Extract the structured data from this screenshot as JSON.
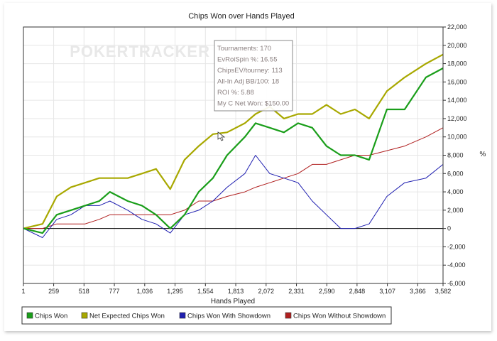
{
  "chart_data": {
    "type": "line",
    "title": "Chips Won over Hands Played",
    "xlabel": "Hands Played",
    "ylabel": "%",
    "xlim": [
      1,
      3582
    ],
    "ylim": [
      -6000,
      22000
    ],
    "grid": true,
    "x_ticks": [
      1,
      259,
      518,
      777,
      1036,
      1295,
      1554,
      1813,
      2072,
      2331,
      2590,
      2848,
      3107,
      3366,
      3582
    ],
    "x_tick_labels": [
      "1",
      "259",
      "518",
      "777",
      "1,036",
      "1,295",
      "1,554",
      "1,813",
      "2,072",
      "2,331",
      "2,590",
      "2,848",
      "3,107",
      "3,366",
      "3,582"
    ],
    "y_ticks": [
      -6000,
      -4000,
      -2000,
      0,
      2000,
      4000,
      6000,
      8000,
      10000,
      12000,
      14000,
      16000,
      18000,
      20000,
      22000
    ],
    "y_tick_labels": [
      "-6,000",
      "-4,000",
      "-2,000",
      "0",
      "2,000",
      "4,000",
      "6,000",
      "8,000",
      "10,000",
      "12,000",
      "14,000",
      "16,000",
      "18,000",
      "20,000",
      "22,000"
    ],
    "legend_position": "bottom",
    "x": [
      1,
      164,
      285,
      406,
      527,
      648,
      739,
      891,
      1012,
      1133,
      1254,
      1376,
      1497,
      1618,
      1739,
      1891,
      1982,
      2103,
      2224,
      2345,
      2466,
      2587,
      2709,
      2830,
      2951,
      3103,
      3254,
      3436,
      3582
    ],
    "series": [
      {
        "name": "Chips Won",
        "color": "#1a9e1a",
        "values": [
          0,
          -500,
          1500,
          2000,
          2500,
          3000,
          4000,
          3000,
          2500,
          1500,
          0,
          1500,
          4000,
          5500,
          8000,
          10000,
          11500,
          11000,
          10500,
          11500,
          11000,
          9000,
          8000,
          8000,
          7500,
          13000,
          13000,
          16500,
          17500
        ]
      },
      {
        "name": "Net Expected Chips Won",
        "color": "#a8a800",
        "values": [
          0,
          500,
          3500,
          4500,
          5000,
          5500,
          5500,
          5500,
          6000,
          6500,
          4300,
          7500,
          9000,
          10300,
          10500,
          11500,
          12500,
          13300,
          12000,
          12500,
          12500,
          13500,
          12500,
          13000,
          12000,
          15000,
          16500,
          18000,
          19000
        ]
      },
      {
        "name": "Chips Won With Showdown",
        "color": "#1f1fb0",
        "values": [
          0,
          -1000,
          1000,
          1500,
          2500,
          2500,
          3000,
          2000,
          1000,
          500,
          -500,
          1500,
          2000,
          3000,
          4500,
          6000,
          8000,
          6000,
          5500,
          5000,
          3000,
          1500,
          0,
          0,
          500,
          3500,
          5000,
          5500,
          7000
        ]
      },
      {
        "name": "Chips Won Without Showdown",
        "color": "#b01f1f",
        "values": [
          0,
          0,
          500,
          500,
          500,
          1000,
          1500,
          1500,
          1500,
          1500,
          1500,
          2000,
          3000,
          3000,
          3500,
          4000,
          4500,
          5000,
          5500,
          6000,
          7000,
          7000,
          7500,
          8000,
          8000,
          8500,
          9000,
          10000,
          11000
        ]
      }
    ]
  },
  "watermark": "POKERTRACKER",
  "tooltip": {
    "lines": [
      "Tournaments: 170",
      "EvRoiSpin %: 16.55",
      "ChipsEV/tourney: 113",
      "All-In Adj BB/100: 18",
      "ROI %: 5.88",
      "My C Net Won: $150.00"
    ]
  }
}
